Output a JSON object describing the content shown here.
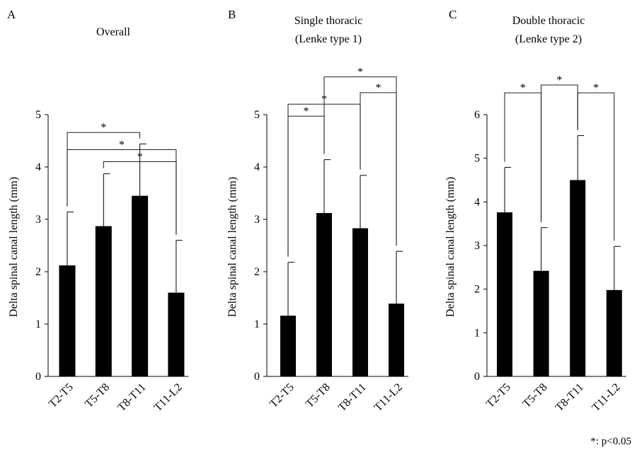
{
  "footnote": "*: p<0.05",
  "chart_data": [
    {
      "panel_label": "A",
      "type": "bar",
      "title": "Overall",
      "ylabel": "Delta spinal canal length (mm)",
      "categories": [
        "T2-T5",
        "T5-T8",
        "T8-T11",
        "T11-L2"
      ],
      "values": [
        2.12,
        2.87,
        3.45,
        1.6
      ],
      "error": [
        1.02,
        1.0,
        0.99,
        1.0
      ],
      "ylim": [
        0,
        5
      ],
      "yticks": [
        0,
        1,
        2,
        3,
        4,
        5
      ],
      "bar_color": "#000000",
      "significance": [
        {
          "from": 0,
          "to": 2,
          "level": 4.66,
          "label": "*"
        },
        {
          "from": 0,
          "to": 3,
          "level": 4.33,
          "label": "*"
        },
        {
          "from": 1,
          "to": 3,
          "level": 4.1,
          "label": "*"
        }
      ]
    },
    {
      "panel_label": "B",
      "type": "bar",
      "title": "Single thoracic (Lenke type 1)",
      "title_lines": [
        "Single thoracic",
        "(Lenke type 1)"
      ],
      "ylabel": "Delta spinal canal length (mm)",
      "categories": [
        "T2-T5",
        "T5-T8",
        "T8-T11",
        "T11-L2"
      ],
      "values": [
        1.16,
        3.12,
        2.83,
        1.39
      ],
      "error": [
        1.02,
        1.02,
        1.01,
        1.0
      ],
      "ylim": [
        0,
        5
      ],
      "yticks": [
        0,
        1,
        2,
        3,
        4,
        5
      ],
      "bar_color": "#000000",
      "significance": [
        {
          "from": 1,
          "to": 3,
          "level": 5.72,
          "label": "*"
        },
        {
          "from": 2,
          "to": 3,
          "level": 5.42,
          "label": "*"
        },
        {
          "from": 0,
          "to": 2,
          "level": 5.2,
          "label": "*"
        },
        {
          "from": 0,
          "to": 1,
          "level": 4.97,
          "label": "*"
        }
      ]
    },
    {
      "panel_label": "C",
      "type": "bar",
      "title": "Double thoracic (Lenke type 2)",
      "title_lines": [
        "Double thoracic",
        "(Lenke type 2)"
      ],
      "ylabel": "Delta spinal canal length (mm)",
      "categories": [
        "T2-T5",
        "T5-T8",
        "T8-T11",
        "T11-L2"
      ],
      "values": [
        3.76,
        2.42,
        4.5,
        1.98
      ],
      "error": [
        1.03,
        0.99,
        1.02,
        1.0
      ],
      "ylim": [
        0,
        6
      ],
      "yticks": [
        0,
        1,
        2,
        3,
        4,
        5,
        6
      ],
      "bar_color": "#000000",
      "significance": [
        {
          "from": 1,
          "to": 2,
          "level": 6.68,
          "label": "*"
        },
        {
          "from": 0,
          "to": 1,
          "level": 6.5,
          "label": "*"
        },
        {
          "from": 2,
          "to": 3,
          "level": 6.5,
          "label": "*"
        }
      ]
    }
  ]
}
